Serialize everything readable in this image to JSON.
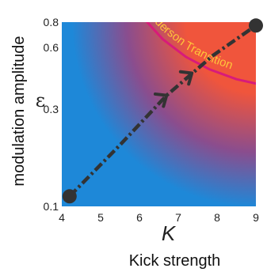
{
  "chart_data": {
    "type": "heatmap",
    "title": "",
    "xlabel": "Kick strength",
    "xsymbol": "K",
    "ylabel": "modulation amplitude",
    "ysymbol": "ε",
    "xlim": [
      4,
      9
    ],
    "ylim": [
      0.1,
      0.8
    ],
    "xticks": [
      4,
      5,
      6,
      7,
      8,
      9
    ],
    "yticks": [
      0.1,
      0.3,
      0.6,
      0.8
    ],
    "y_scale": "log",
    "colormap": {
      "low": "#1e88d8",
      "mid": "#8a4d8e",
      "high": "#f0553c"
    },
    "transition_curve": {
      "label": "Anderson Transition",
      "color": "#d81b7a",
      "points": [
        [
          6.2,
          0.8
        ],
        [
          6.6,
          0.66
        ],
        [
          7.2,
          0.54
        ],
        [
          7.8,
          0.47
        ],
        [
          8.5,
          0.42
        ],
        [
          9.0,
          0.4
        ]
      ]
    },
    "path": {
      "start": [
        4.2,
        0.112
      ],
      "end": [
        9.0,
        0.77
      ],
      "points": [
        [
          4.2,
          0.112
        ],
        [
          5.5,
          0.2
        ],
        [
          6.7,
          0.35
        ],
        [
          7.9,
          0.55
        ],
        [
          9.0,
          0.77
        ]
      ],
      "arrow_at": [
        [
          6.7,
          0.35
        ],
        [
          7.35,
          0.45
        ]
      ],
      "color": "#333333"
    }
  }
}
